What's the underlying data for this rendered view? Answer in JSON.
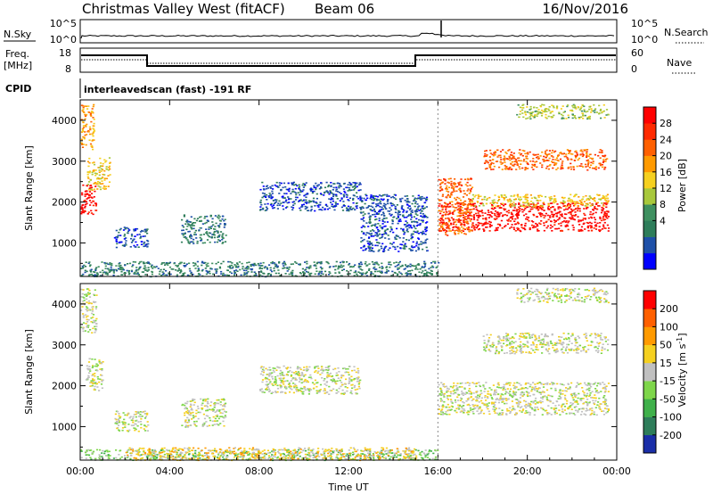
{
  "header": {
    "station": "Christmas Valley West (fitACF)",
    "beam": "Beam 06",
    "date": "16/Nov/2016"
  },
  "noise_panel": {
    "left_label": "N.Sky",
    "right_label": "N.Search",
    "left_ticks": [
      "10^5",
      "10^0"
    ],
    "right_ticks": [
      "10^5",
      "10^0"
    ]
  },
  "freq_panel": {
    "left_label_line1": "Freq.",
    "left_label_line2": "[MHz]",
    "right_label": "Nave",
    "left_ticks": [
      "18",
      "8"
    ],
    "right_ticks": [
      "60",
      "0"
    ]
  },
  "cpid": {
    "label": "CPID",
    "text": "interleavedscan (fast) -191 RF"
  },
  "chart_data": [
    {
      "type": "heatmap",
      "quantity": "Power",
      "ylabel": "Slant Range [km]",
      "xlabel": "Time UT",
      "x_ticks": [
        "00:00",
        "04:00",
        "08:00",
        "12:00",
        "16:00",
        "20:00",
        "00:00"
      ],
      "y_ticks": [
        1000,
        2000,
        3000,
        4000
      ],
      "ylim": [
        180,
        4500
      ],
      "xlim_hours": [
        0,
        24
      ],
      "colorbar": {
        "label": "Power [dB]",
        "ticks": [
          "28",
          "24",
          "20",
          "16",
          "12",
          "8",
          "4"
        ],
        "colors": [
          "#0000ff",
          "#1e50a8",
          "#2e7d5a",
          "#3f9060",
          "#a8c83c",
          "#f5d020",
          "#ff9a00",
          "#ff6000",
          "#ff2a00",
          "#ff0000"
        ]
      },
      "scatter_regions": [
        {
          "t0": 0.0,
          "t1": 16.0,
          "r0": 190,
          "r1": 560,
          "level": 2
        },
        {
          "t0": 0.0,
          "t1": 0.7,
          "r0": 1700,
          "r1": 2500,
          "level": 9
        },
        {
          "t0": 0.3,
          "t1": 1.3,
          "r0": 2300,
          "r1": 3100,
          "level": 5
        },
        {
          "t0": 0.0,
          "t1": 0.6,
          "r0": 3300,
          "r1": 4400,
          "level": 6
        },
        {
          "t0": 1.5,
          "t1": 3.0,
          "r0": 900,
          "r1": 1400,
          "level": 1
        },
        {
          "t0": 4.5,
          "t1": 6.5,
          "r0": 1000,
          "r1": 1700,
          "level": 2
        },
        {
          "t0": 8.0,
          "t1": 12.5,
          "r0": 1800,
          "r1": 2500,
          "level": 1
        },
        {
          "t0": 12.5,
          "t1": 15.5,
          "r0": 800,
          "r1": 2200,
          "level": 1
        },
        {
          "t0": 16.0,
          "t1": 23.6,
          "r0": 1300,
          "r1": 2000,
          "level": 9
        },
        {
          "t0": 16.0,
          "t1": 17.5,
          "r0": 1200,
          "r1": 2600,
          "level": 7
        },
        {
          "t0": 17.5,
          "t1": 23.6,
          "r0": 1900,
          "r1": 2200,
          "level": 5
        },
        {
          "t0": 18.0,
          "t1": 23.6,
          "r0": 2800,
          "r1": 3300,
          "level": 7
        },
        {
          "t0": 19.5,
          "t1": 23.6,
          "r0": 4050,
          "r1": 4400,
          "level": 4
        }
      ]
    },
    {
      "type": "heatmap",
      "quantity": "Velocity",
      "ylabel": "Slant Range [km]",
      "xlabel": "Time UT",
      "x_ticks": [
        "00:00",
        "04:00",
        "08:00",
        "12:00",
        "16:00",
        "20:00",
        "00:00"
      ],
      "y_ticks": [
        1000,
        2000,
        3000,
        4000
      ],
      "ylim": [
        180,
        4500
      ],
      "xlim_hours": [
        0,
        24
      ],
      "colorbar": {
        "label": "Velocity [m s",
        "label_exp": "-1",
        "label_end": "]",
        "ticks": [
          "200",
          "100",
          "50",
          "15",
          "-15",
          "-50",
          "-100",
          "-200"
        ],
        "colors": [
          "#1a2ea8",
          "#2e7d5a",
          "#3fb04a",
          "#7ed64a",
          "#c0c0c0",
          "#f5d020",
          "#ff9a00",
          "#ff6000",
          "#ff0000"
        ]
      },
      "scatter_regions": [
        {
          "t0": 0.0,
          "t1": 16.0,
          "r0": 190,
          "r1": 450,
          "level": 3
        },
        {
          "t0": 2.0,
          "t1": 15.0,
          "r0": 190,
          "r1": 500,
          "level": 5
        },
        {
          "t0": 0.2,
          "t1": 1.0,
          "r0": 1900,
          "r1": 2700,
          "level": 4
        },
        {
          "t0": 0.0,
          "t1": 0.7,
          "r0": 3300,
          "r1": 4400,
          "level": 4
        },
        {
          "t0": 1.5,
          "t1": 3.0,
          "r0": 900,
          "r1": 1400,
          "level": 4
        },
        {
          "t0": 4.5,
          "t1": 6.5,
          "r0": 1000,
          "r1": 1700,
          "level": 4
        },
        {
          "t0": 8.0,
          "t1": 12.5,
          "r0": 1800,
          "r1": 2500,
          "level": 4
        },
        {
          "t0": 16.0,
          "t1": 23.6,
          "r0": 1300,
          "r1": 2100,
          "level": 4
        },
        {
          "t0": 18.0,
          "t1": 23.6,
          "r0": 2800,
          "r1": 3300,
          "level": 4
        },
        {
          "t0": 19.5,
          "t1": 23.6,
          "r0": 4050,
          "r1": 4400,
          "level": 4
        }
      ]
    }
  ]
}
